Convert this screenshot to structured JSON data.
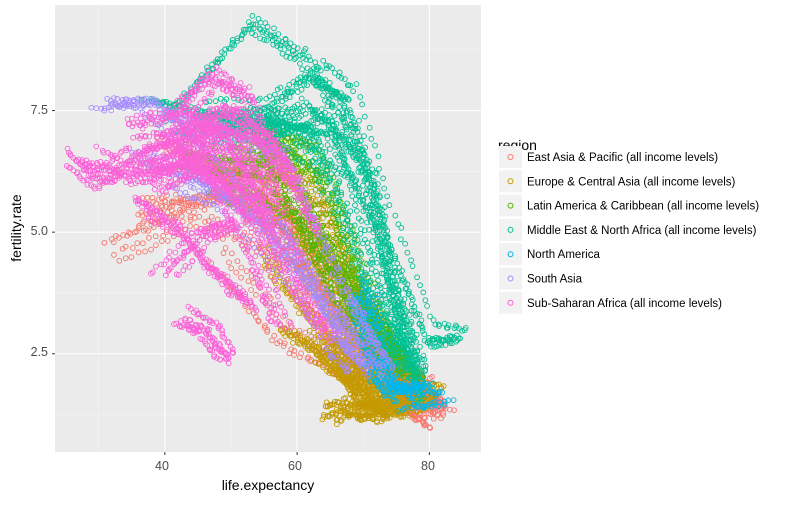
{
  "chart_data": {
    "type": "scatter",
    "xlabel": "life.expectancy",
    "ylabel": "fertility.rate",
    "xlim": [
      23.4,
      87.8
    ],
    "ylim": [
      0.48,
      9.67
    ],
    "xticks": [
      40,
      60,
      80
    ],
    "xtick_labels": [
      "40",
      "60",
      "80"
    ],
    "yticks": [
      2.5,
      5.0,
      7.5
    ],
    "ytick_labels": [
      "2.5",
      "5.0",
      "7.5"
    ],
    "grid": true,
    "legend": {
      "title": "region",
      "position": "right"
    },
    "series": [
      {
        "name": "East Asia & Pacific (all income levels)",
        "color": "#F8766D",
        "trajectories": [
          [
            [
              33,
              4.6
            ],
            [
              45,
              5.3
            ],
            [
              62,
              4.2
            ],
            [
              76,
              1.6
            ],
            [
              80,
              1.0
            ]
          ],
          [
            [
              35,
              5.2
            ],
            [
              48,
              5.8
            ],
            [
              64,
              3.5
            ],
            [
              78,
              1.4
            ]
          ],
          [
            [
              38,
              5.5
            ],
            [
              55,
              5.6
            ],
            [
              70,
              2.5
            ],
            [
              80,
              1.6
            ],
            [
              82,
              1.3
            ]
          ],
          [
            [
              45,
              6.2
            ],
            [
              58,
              6.0
            ],
            [
              68,
              3.0
            ],
            [
              78,
              1.8
            ]
          ],
          [
            [
              50,
              6.5
            ],
            [
              60,
              5.2
            ],
            [
              72,
              2.4
            ],
            [
              81,
              1.5
            ]
          ],
          [
            [
              55,
              6.0
            ],
            [
              62,
              4.5
            ],
            [
              74,
              2.2
            ],
            [
              83,
              1.2
            ]
          ],
          [
            [
              40,
              6.8
            ],
            [
              52,
              6.0
            ],
            [
              66,
              3.0
            ],
            [
              76,
              2.0
            ]
          ],
          [
            [
              48,
              4.5
            ],
            [
              58,
              2.9
            ],
            [
              70,
              2.0
            ],
            [
              80,
              1.9
            ]
          ],
          [
            [
              60,
              3.8
            ],
            [
              68,
              2.4
            ],
            [
              76,
              1.6
            ],
            [
              81,
              1.4
            ]
          ]
        ]
      },
      {
        "name": "Europe & Central Asia (all income levels)",
        "color": "#C49A00",
        "trajectories": [
          [
            [
              58,
              3.0
            ],
            [
              66,
              2.4
            ],
            [
              70,
              1.4
            ],
            [
              74,
              1.3
            ]
          ],
          [
            [
              62,
              2.6
            ],
            [
              68,
              2.0
            ],
            [
              72,
              1.3
            ],
            [
              77,
              1.4
            ]
          ],
          [
            [
              64,
              2.4
            ],
            [
              70,
              1.8
            ],
            [
              75,
              1.4
            ],
            [
              81,
              1.6
            ]
          ],
          [
            [
              55,
              4.5
            ],
            [
              62,
              3.2
            ],
            [
              68,
              2.2
            ],
            [
              73,
              1.6
            ]
          ],
          [
            [
              50,
              6.0
            ],
            [
              60,
              5.2
            ],
            [
              68,
              3.0
            ],
            [
              74,
              2.0
            ]
          ],
          [
            [
              55,
              6.5
            ],
            [
              63,
              5.5
            ],
            [
              70,
              3.5
            ],
            [
              76,
              2.2
            ]
          ],
          [
            [
              65,
              1.3
            ],
            [
              68,
              1.4
            ],
            [
              71,
              1.3
            ],
            [
              76,
              1.5
            ]
          ],
          [
            [
              60,
              5.0
            ],
            [
              66,
              4.0
            ],
            [
              72,
              2.5
            ],
            [
              78,
              1.8
            ]
          ],
          [
            [
              66,
              2.8
            ],
            [
              71,
              2.0
            ],
            [
              76,
              1.6
            ],
            [
              82,
              1.9
            ]
          ],
          [
            [
              52,
              7.0
            ],
            [
              62,
              6.0
            ],
            [
              70,
              3.0
            ],
            [
              76,
              1.6
            ]
          ]
        ]
      },
      {
        "name": "Latin America & Caribbean (all income levels)",
        "color": "#53B400",
        "trajectories": [
          [
            [
              45,
              6.8
            ],
            [
              58,
              6.5
            ],
            [
              68,
              3.5
            ],
            [
              76,
              2.2
            ]
          ],
          [
            [
              50,
              7.0
            ],
            [
              60,
              6.6
            ],
            [
              70,
              3.5
            ],
            [
              77,
              2.0
            ]
          ],
          [
            [
              55,
              6.8
            ],
            [
              64,
              6.0
            ],
            [
              72,
              3.0
            ],
            [
              79,
              1.8
            ]
          ],
          [
            [
              42,
              6.5
            ],
            [
              55,
              6.2
            ],
            [
              66,
              4.0
            ],
            [
              73,
              2.5
            ]
          ],
          [
            [
              60,
              5.5
            ],
            [
              67,
              4.0
            ],
            [
              73,
              2.6
            ],
            [
              78,
              1.9
            ]
          ],
          [
            [
              48,
              6.0
            ],
            [
              62,
              5.0
            ],
            [
              70,
              3.0
            ],
            [
              75,
              2.4
            ]
          ],
          [
            [
              53,
              7.3
            ],
            [
              63,
              6.8
            ],
            [
              71,
              3.8
            ],
            [
              76,
              2.3
            ]
          ]
        ]
      },
      {
        "name": "Middle East & North Africa (all income levels)",
        "color": "#00C094",
        "trajectories": [
          [
            [
              40,
              7.3
            ],
            [
              52,
              9.2
            ],
            [
              60,
              8.5
            ],
            [
              68,
              7.0
            ],
            [
              74,
              3.5
            ],
            [
              78,
              1.8
            ]
          ],
          [
            [
              45,
              7.5
            ],
            [
              55,
              7.6
            ],
            [
              63,
              8.3
            ],
            [
              68,
              7.8
            ],
            [
              74,
              5.0
            ],
            [
              80,
              2.9
            ],
            [
              85,
              2.9
            ]
          ],
          [
            [
              42,
              7.0
            ],
            [
              55,
              7.3
            ],
            [
              65,
              7.0
            ],
            [
              72,
              5.0
            ],
            [
              76,
              2.5
            ]
          ],
          [
            [
              50,
              7.2
            ],
            [
              60,
              7.5
            ],
            [
              68,
              6.5
            ],
            [
              74,
              3.5
            ],
            [
              78,
              2.0
            ]
          ],
          [
            [
              38,
              7.8
            ],
            [
              50,
              7.4
            ],
            [
              62,
              7.2
            ],
            [
              71,
              4.2
            ],
            [
              76,
              2.2
            ]
          ],
          [
            [
              47,
              7.0
            ],
            [
              58,
              7.0
            ],
            [
              67,
              6.0
            ],
            [
              73,
              3.0
            ],
            [
              77,
              2.1
            ]
          ],
          [
            [
              55,
              7.0
            ],
            [
              65,
              7.5
            ],
            [
              72,
              6.0
            ],
            [
              76,
              3.0
            ],
            [
              79,
              1.5
            ]
          ]
        ]
      },
      {
        "name": "North America",
        "color": "#00B6EB",
        "trajectories": [
          [
            [
              69,
              3.7
            ],
            [
              71,
              2.5
            ],
            [
              74,
              1.8
            ],
            [
              79,
              1.9
            ]
          ],
          [
            [
              70,
              3.9
            ],
            [
              72,
              2.2
            ],
            [
              76,
              1.6
            ],
            [
              82,
              1.6
            ]
          ]
        ]
      },
      {
        "name": "South Asia",
        "color": "#A58AFF",
        "trajectories": [
          [
            [
              31,
              7.7
            ],
            [
              38,
              7.7
            ],
            [
              45,
              6.8
            ],
            [
              58,
              5.0
            ],
            [
              66,
              2.8
            ],
            [
              70,
              2.2
            ]
          ],
          [
            [
              36,
              6.5
            ],
            [
              46,
              6.0
            ],
            [
              56,
              5.0
            ],
            [
              64,
              3.5
            ],
            [
              68,
              2.5
            ]
          ],
          [
            [
              40,
              7.3
            ],
            [
              48,
              7.0
            ],
            [
              58,
              6.5
            ],
            [
              68,
              3.5
            ],
            [
              74,
              2.2
            ]
          ],
          [
            [
              42,
              6.0
            ],
            [
              50,
              5.5
            ],
            [
              62,
              3.5
            ],
            [
              72,
              2.0
            ]
          ]
        ]
      },
      {
        "name": "Sub-Saharan Africa (all income levels)",
        "color": "#FB61D7",
        "trajectories": [
          [
            [
              38,
              6.5
            ],
            [
              45,
              6.8
            ],
            [
              52,
              6.4
            ],
            [
              58,
              5.0
            ]
          ],
          [
            [
              40,
              4.2
            ],
            [
              46,
              5.0
            ],
            [
              50,
              5.2
            ]
          ],
          [
            [
              43,
              3.3
            ],
            [
              47,
              3.0
            ],
            [
              50,
              2.4
            ]
          ],
          [
            [
              35,
              7.4
            ],
            [
              44,
              7.6
            ],
            [
              50,
              7.0
            ],
            [
              56,
              5.5
            ]
          ],
          [
            [
              42,
              7.5
            ],
            [
              47,
              8.2
            ],
            [
              52,
              7.8
            ],
            [
              58,
              5.8
            ]
          ],
          [
            [
              30,
              6.6
            ],
            [
              36,
              6.2
            ],
            [
              42,
              6.5
            ],
            [
              48,
              6.8
            ]
          ],
          [
            [
              40,
              7.0
            ],
            [
              48,
              7.1
            ],
            [
              54,
              6.2
            ],
            [
              60,
              4.3
            ]
          ],
          [
            [
              45,
              6.4
            ],
            [
              52,
              5.8
            ],
            [
              60,
              4.0
            ],
            [
              66,
              2.8
            ]
          ],
          [
            [
              37,
              6.0
            ],
            [
              44,
              6.3
            ],
            [
              50,
              5.9
            ],
            [
              55,
              5.0
            ]
          ],
          [
            [
              26,
              6.5
            ],
            [
              30,
              6.0
            ],
            [
              36,
              6.7
            ],
            [
              42,
              7.0
            ]
          ],
          [
            [
              40,
              6.8
            ],
            [
              48,
              7.3
            ],
            [
              56,
              6.8
            ],
            [
              62,
              5.0
            ]
          ],
          [
            [
              36,
              5.5
            ],
            [
              42,
              5.0
            ],
            [
              48,
              4.0
            ],
            [
              53,
              3.5
            ]
          ],
          [
            [
              44,
              7.2
            ],
            [
              50,
              7.6
            ],
            [
              55,
              7.0
            ],
            [
              60,
              6.0
            ]
          ],
          [
            [
              39,
              6.0
            ],
            [
              46,
              6.5
            ],
            [
              54,
              4.5
            ],
            [
              58,
              3.0
            ]
          ]
        ]
      }
    ]
  }
}
